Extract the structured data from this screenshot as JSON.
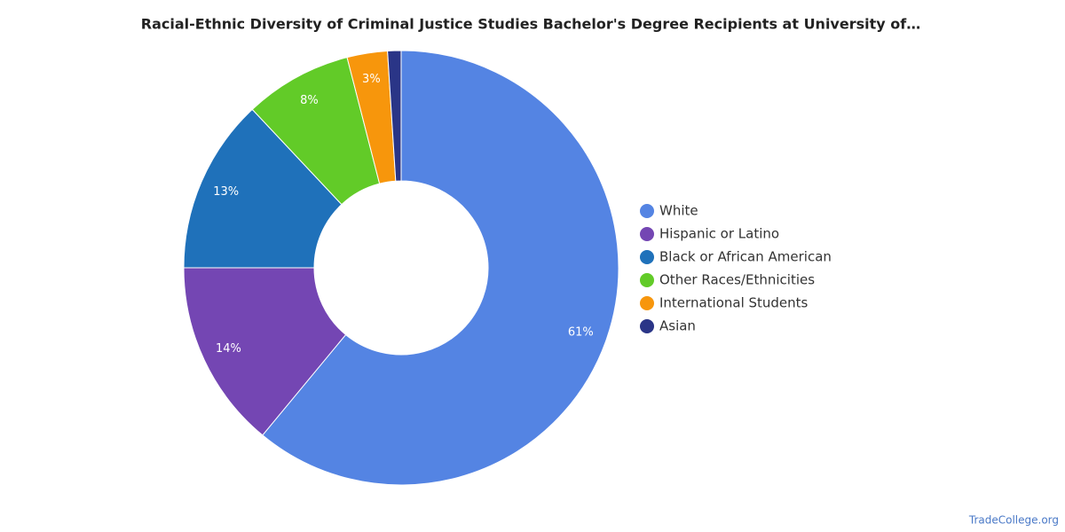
{
  "chart_data": {
    "type": "donut",
    "title": "Racial-Ethnic Diversity of Criminal Justice Studies Bachelor's Degree Recipients at University of…",
    "categories": [
      "White",
      "Hispanic or Latino",
      "Black or African American",
      "Other Races/Ethnicities",
      "International Students",
      "Asian"
    ],
    "values": [
      61,
      14,
      13,
      8,
      3,
      1
    ],
    "value_labels": [
      "61%",
      "14%",
      "13%",
      "8%",
      "3%",
      null
    ],
    "colors": [
      "#5484e3",
      "#7446b3",
      "#1f71ba",
      "#62cb28",
      "#f7960c",
      "#2a3587"
    ],
    "legend": "right",
    "source": "TradeCollege.org"
  }
}
